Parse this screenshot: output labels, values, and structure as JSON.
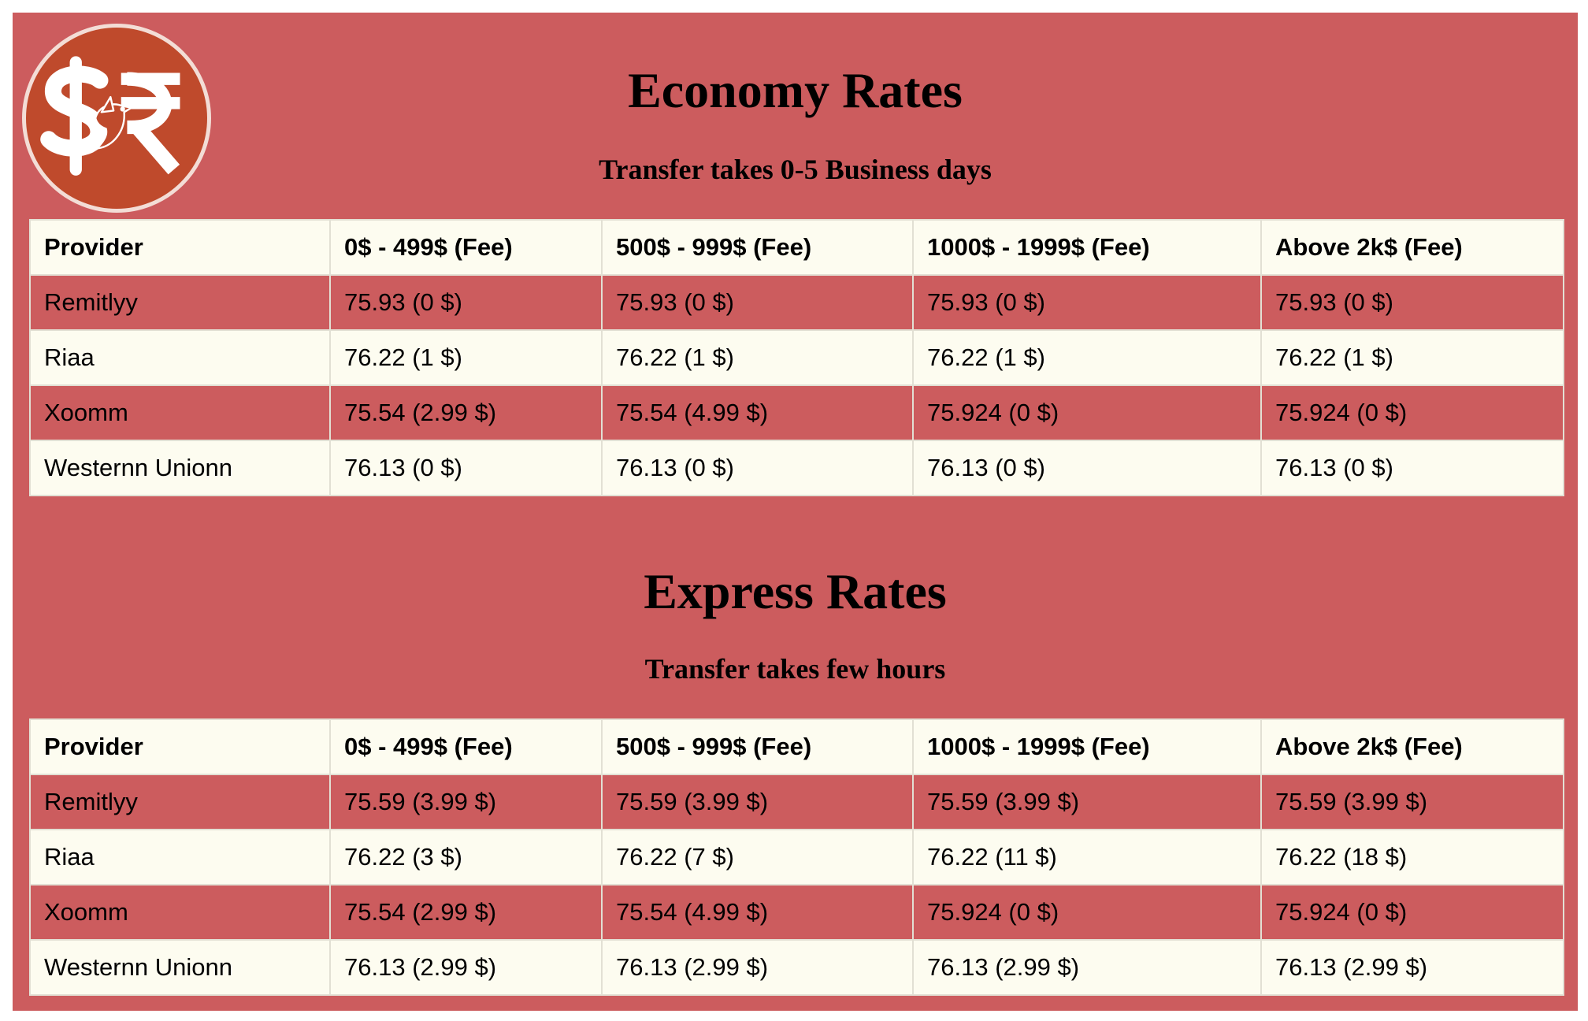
{
  "logo": {
    "icon": "dollar-rupee-bird-logo",
    "colors": {
      "circle": "#bf4a2c",
      "glyph": "#ffffff"
    }
  },
  "colors": {
    "panel": "#cc5c5e",
    "light_row": "#fdfcf0",
    "border": "#e2e0d4"
  },
  "economy": {
    "title": "Economy Rates",
    "subtitle": "Transfer takes 0-5 Business days",
    "headers": [
      "Provider",
      "0$ - 499$ (Fee)",
      "500$ - 999$ (Fee)",
      "1000$ - 1999$ (Fee)",
      "Above 2k$ (Fee)"
    ],
    "rows": [
      [
        "Remitlyy",
        "75.93 (0 $)",
        "75.93 (0 $)",
        "75.93 (0 $)",
        "75.93 (0 $)"
      ],
      [
        "Riaa",
        "76.22 (1 $)",
        "76.22 (1 $)",
        "76.22 (1 $)",
        "76.22 (1 $)"
      ],
      [
        "Xoomm",
        "75.54 (2.99 $)",
        "75.54 (4.99 $)",
        "75.924 (0 $)",
        "75.924 (0 $)"
      ],
      [
        "Westernn Unionn",
        "76.13 (0 $)",
        "76.13 (0 $)",
        "76.13 (0 $)",
        "76.13 (0 $)"
      ]
    ]
  },
  "express": {
    "title": "Express Rates",
    "subtitle": "Transfer takes few hours",
    "headers": [
      "Provider",
      "0$ - 499$ (Fee)",
      "500$ - 999$ (Fee)",
      "1000$ - 1999$ (Fee)",
      "Above 2k$ (Fee)"
    ],
    "rows": [
      [
        "Remitlyy",
        "75.59 (3.99 $)",
        "75.59 (3.99 $)",
        "75.59 (3.99 $)",
        "75.59 (3.99 $)"
      ],
      [
        "Riaa",
        "76.22 (3 $)",
        "76.22 (7 $)",
        "76.22 (11 $)",
        "76.22 (18 $)"
      ],
      [
        "Xoomm",
        "75.54 (2.99 $)",
        "75.54 (4.99 $)",
        "75.924 (0 $)",
        "75.924 (0 $)"
      ],
      [
        "Westernn Unionn",
        "76.13 (2.99 $)",
        "76.13 (2.99 $)",
        "76.13 (2.99 $)",
        "76.13 (2.99 $)"
      ]
    ]
  }
}
